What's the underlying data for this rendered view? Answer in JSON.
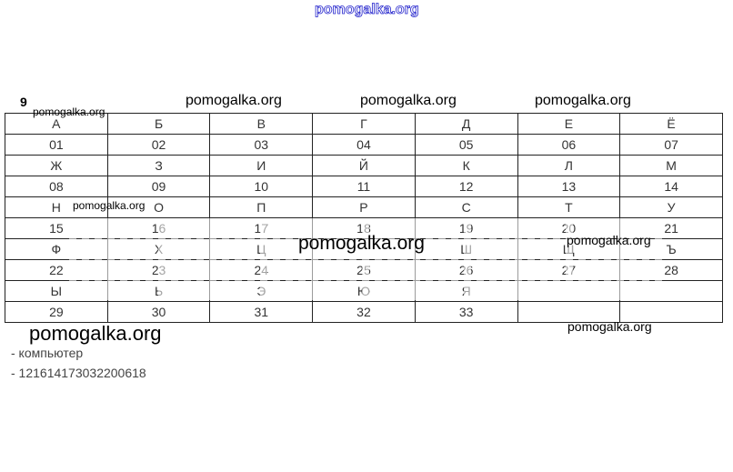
{
  "watermarks": {
    "top": "pomogalka.org",
    "header1": "pomogalka.org",
    "header2": "pomogalka.org",
    "header3": "pomogalka.org",
    "small_left": "pomogalka.org",
    "row_n": "pomogalka.org",
    "center": "pomogalka.org",
    "right": "pomogalka.org",
    "bottom_left": "pomogalka.org",
    "bottom_right": "pomogalka.org"
  },
  "task_number": "9",
  "table": {
    "rows": [
      [
        "А",
        "Б",
        "В",
        "Г",
        "Д",
        "Е",
        "Ё"
      ],
      [
        "01",
        "02",
        "03",
        "04",
        "05",
        "06",
        "07"
      ],
      [
        "Ж",
        "З",
        "И",
        "Й",
        "К",
        "Л",
        "М"
      ],
      [
        "08",
        "09",
        "10",
        "11",
        "12",
        "13",
        "14"
      ],
      [
        "Н",
        "О",
        "П",
        "Р",
        "С",
        "Т",
        "У"
      ],
      [
        "15",
        "16",
        "17",
        "18",
        "19",
        "20",
        "21"
      ],
      [
        "Ф",
        "Х",
        "Ц",
        "",
        "Ш",
        "Щ",
        "Ъ"
      ],
      [
        "22",
        "23",
        "24",
        "25",
        "26",
        "27",
        "28"
      ],
      [
        "Ы",
        "Ь",
        "Э",
        "Ю",
        "Я",
        "",
        ""
      ],
      [
        "29",
        "30",
        "31",
        "32",
        "33",
        "",
        ""
      ]
    ]
  },
  "answers": [
    "- компьютер",
    "- 121614173032200618"
  ]
}
